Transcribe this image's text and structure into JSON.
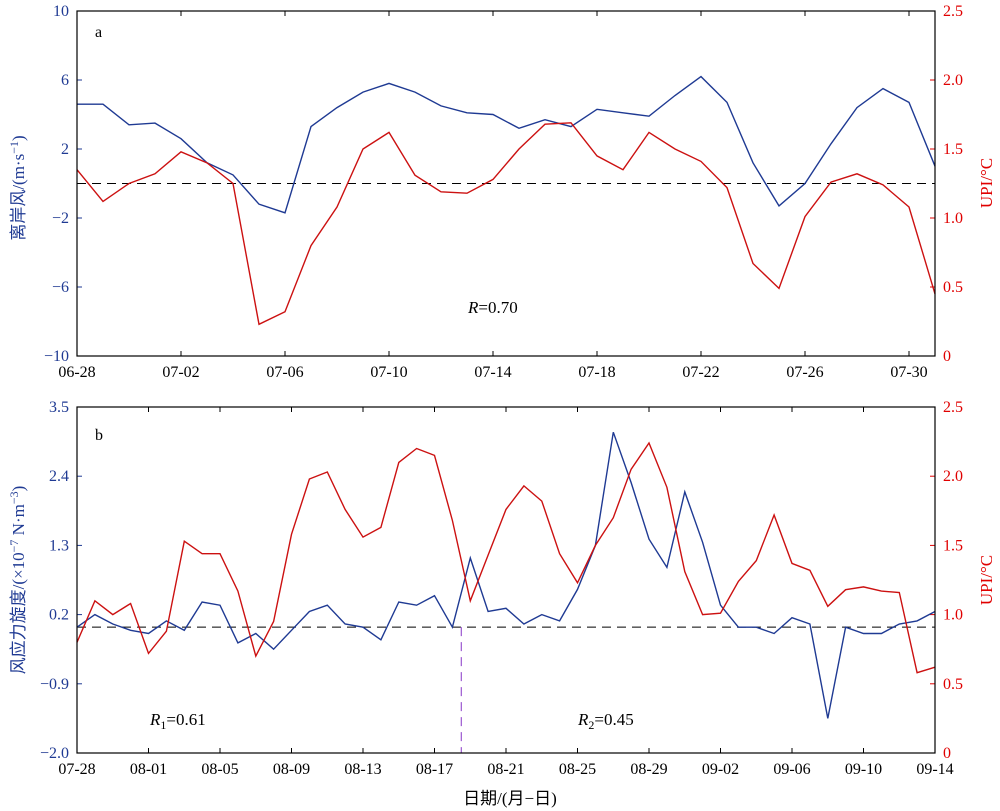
{
  "colors": {
    "left_axis": "#1f3a93",
    "right_axis": "#e00000",
    "blue_series": "#1f3a93",
    "red_series": "#cc1111",
    "baseline": "#000000",
    "divider": "#9b59d0",
    "frame": "#000000"
  },
  "xlabel": "日期/(月−日)",
  "chart_data": [
    {
      "type": "line",
      "panel_label": "a",
      "annotation": {
        "italic": "R",
        "text": "=0.70"
      },
      "x_tick_labels": [
        "06-28",
        "07-02",
        "07-06",
        "07-10",
        "07-14",
        "07-18",
        "07-22",
        "07-26",
        "07-30"
      ],
      "x_tick_day_index": [
        0,
        4,
        8,
        12,
        16,
        20,
        24,
        28,
        32
      ],
      "x_range": [
        0,
        33
      ],
      "left_axis": {
        "label_main": "离岸风/(m·s",
        "label_sup": "−1",
        "label_end": ")",
        "ylim": [
          -10,
          10
        ],
        "ticks": [
          "−10",
          "−6",
          "−2",
          "2",
          "6",
          "10"
        ],
        "tick_values": [
          -10,
          -6,
          -2,
          2,
          6,
          10
        ]
      },
      "right_axis": {
        "label": "UPI/°C",
        "ylim": [
          0,
          2.5
        ],
        "ticks": [
          "0",
          "0.5",
          "1.0",
          "1.5",
          "2.0",
          "2.5"
        ],
        "tick_values": [
          0,
          0.5,
          1.0,
          1.5,
          2.0,
          2.5
        ]
      },
      "baseline": {
        "axis": "left",
        "y": 0
      },
      "series": [
        {
          "axis": "left",
          "color_key": "blue_series",
          "x": [
            0,
            1,
            2,
            3,
            4,
            5,
            6,
            7,
            8,
            9,
            10,
            11,
            12,
            13,
            14,
            15,
            16,
            17,
            18,
            19,
            20,
            21,
            22,
            23,
            24,
            25,
            26,
            27,
            28,
            29,
            30,
            31,
            32,
            33
          ],
          "values": [
            4.6,
            4.6,
            3.4,
            3.5,
            2.6,
            1.2,
            0.5,
            -1.2,
            -1.7,
            3.3,
            4.4,
            5.3,
            5.8,
            5.3,
            4.5,
            4.1,
            4.0,
            3.2,
            3.7,
            3.3,
            4.3,
            4.1,
            3.9,
            5.1,
            6.2,
            4.7,
            1.2,
            -1.3,
            0.0,
            2.3,
            4.4,
            5.5,
            4.7,
            1.0
          ]
        },
        {
          "axis": "right",
          "color_key": "red_series",
          "x": [
            0,
            1,
            2,
            3,
            4,
            5,
            6,
            7,
            8,
            9,
            10,
            11,
            12,
            13,
            14,
            15,
            16,
            17,
            18,
            19,
            20,
            21,
            22,
            23,
            24,
            25,
            26,
            27,
            28,
            29,
            30,
            31,
            32,
            33
          ],
          "values": [
            1.35,
            1.12,
            1.25,
            1.32,
            1.48,
            1.4,
            1.25,
            0.23,
            0.32,
            0.8,
            1.08,
            1.5,
            1.62,
            1.31,
            1.19,
            1.18,
            1.28,
            1.5,
            1.68,
            1.69,
            1.45,
            1.35,
            1.62,
            1.5,
            1.41,
            1.22,
            0.67,
            0.49,
            1.01,
            1.26,
            1.32,
            1.24,
            1.08,
            0.45
          ]
        }
      ]
    },
    {
      "type": "line",
      "panel_label": "b",
      "annotations": [
        {
          "italic": "R",
          "sub": "1",
          "text": "=0.61"
        },
        {
          "italic": "R",
          "sub": "2",
          "text": "=0.45"
        }
      ],
      "x_tick_labels": [
        "07-28",
        "08-01",
        "08-05",
        "08-09",
        "08-13",
        "08-17",
        "08-21",
        "08-25",
        "08-29",
        "09-02",
        "09-06",
        "09-10",
        "09-14"
      ],
      "x_tick_day_index": [
        0,
        4,
        8,
        12,
        16,
        20,
        24,
        28,
        32,
        36,
        40,
        44,
        48
      ],
      "x_range": [
        0,
        48
      ],
      "left_axis": {
        "label_main": "风应力旋度/(×10",
        "label_sup1": "−7",
        "label_mid": " N·m",
        "label_sup2": "−3",
        "label_end": ")",
        "ylim": [
          -2.0,
          3.5
        ],
        "ticks": [
          "−2.0",
          "−0.9",
          "0.2",
          "1.3",
          "2.4",
          "3.5"
        ],
        "tick_values": [
          -2.0,
          -0.9,
          0.2,
          1.3,
          2.4,
          3.5
        ]
      },
      "right_axis": {
        "label": "UPI/°C",
        "ylim": [
          0,
          2.5
        ],
        "ticks": [
          "0",
          "0.5",
          "1.0",
          "1.5",
          "2.0",
          "2.5"
        ],
        "tick_values": [
          0,
          0.5,
          1.0,
          1.5,
          2.0,
          2.5
        ]
      },
      "baseline": {
        "axis": "left",
        "y": 0
      },
      "divider_x": 21.5,
      "series": [
        {
          "axis": "left",
          "color_key": "blue_series",
          "x": [
            0,
            1,
            2,
            3,
            4,
            5,
            6,
            7,
            8,
            9,
            10,
            11,
            12,
            13,
            14,
            15,
            16,
            17,
            18,
            19,
            20,
            21,
            22,
            23,
            24,
            25,
            26,
            27,
            28,
            29,
            30,
            31,
            32,
            33,
            34,
            35,
            36,
            37,
            38,
            39,
            40,
            41,
            42,
            43,
            44,
            45,
            46,
            47,
            48
          ],
          "values": [
            0.0,
            0.2,
            0.05,
            -0.05,
            -0.1,
            0.1,
            -0.05,
            0.4,
            0.35,
            -0.25,
            -0.1,
            -0.35,
            -0.05,
            0.25,
            0.35,
            0.05,
            0.0,
            -0.2,
            0.4,
            0.35,
            0.5,
            0.0,
            1.1,
            0.25,
            0.3,
            0.05,
            0.2,
            0.1,
            0.6,
            1.3,
            3.1,
            2.3,
            1.4,
            0.95,
            2.15,
            1.35,
            0.35,
            0.0,
            0.0,
            -0.1,
            0.15,
            0.05,
            -1.45,
            0.0,
            -0.1,
            -0.1,
            0.05,
            0.1,
            0.25
          ]
        },
        {
          "axis": "right",
          "color_key": "red_series",
          "x": [
            0,
            1,
            2,
            3,
            4,
            5,
            6,
            7,
            8,
            9,
            10,
            11,
            12,
            13,
            14,
            15,
            16,
            17,
            18,
            19,
            20,
            21,
            22,
            23,
            24,
            25,
            26,
            27,
            28,
            29,
            30,
            31,
            32,
            33,
            34,
            35,
            36,
            37,
            38,
            39,
            40,
            41,
            42,
            43,
            44,
            45,
            46,
            47,
            48
          ],
          "values": [
            0.8,
            1.1,
            1.0,
            1.08,
            0.72,
            0.88,
            1.53,
            1.44,
            1.44,
            1.17,
            0.7,
            0.95,
            1.58,
            1.98,
            2.03,
            1.76,
            1.56,
            1.63,
            2.1,
            2.2,
            2.15,
            1.68,
            1.1,
            1.43,
            1.76,
            1.93,
            1.82,
            1.44,
            1.23,
            1.5,
            1.7,
            2.05,
            2.24,
            1.92,
            1.31,
            1.0,
            1.01,
            1.24,
            1.39,
            1.72,
            1.37,
            1.32,
            1.06,
            1.18,
            1.2,
            1.17,
            1.16,
            0.58,
            0.62
          ]
        }
      ]
    }
  ]
}
